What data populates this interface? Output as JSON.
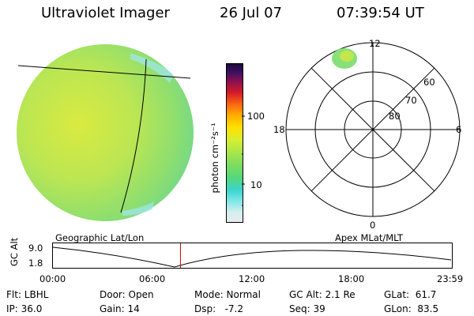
{
  "header": {
    "title": "Ultraviolet Imager",
    "date": "26 Jul 07",
    "time": "07:39:54 UT"
  },
  "colorbar": {
    "unit_label": "photon cm⁻²s⁻¹",
    "ticks": [
      "100",
      "10"
    ]
  },
  "polar_plot": {
    "mlt_labels": {
      "top": "12",
      "left": "18",
      "right": "6",
      "bottom": "0"
    },
    "lat_labels": [
      "60",
      "70",
      "80"
    ]
  },
  "timeline": {
    "left_title": "Geographic Lat/Lon",
    "right_title": "Apex MLat/MLT",
    "y_axis_label": "GC Alt",
    "y_ticks": [
      "9.0",
      "1.8"
    ],
    "x_ticks": [
      "00:00",
      "06:00",
      "12:00",
      "18:00",
      "23:59"
    ],
    "current_time_fraction": 0.32,
    "orbit_curve_color": "#000000",
    "marker_color": "#cc0000"
  },
  "footer": {
    "row1": {
      "flt": "Flt: LBHL",
      "door": "Door: Open",
      "mode": "Mode: Normal",
      "gc_alt": "GC Alt: 2.1 Re",
      "glat": "GLat:  61.7"
    },
    "row2": {
      "ip": "IP: 36.0",
      "gain": "Gain: 14",
      "dsp": "Dsp:   -7.2",
      "seq": "Seq: 39",
      "glon": "GLon:  83.5"
    }
  },
  "colors": {
    "disk_fill": "#8be06a",
    "disk_bright": "#d8ec3a",
    "colorbar_top": "#1a0a3a",
    "colorbar_mid": "#ffd400",
    "colorbar_low": "#3ad6cf"
  }
}
